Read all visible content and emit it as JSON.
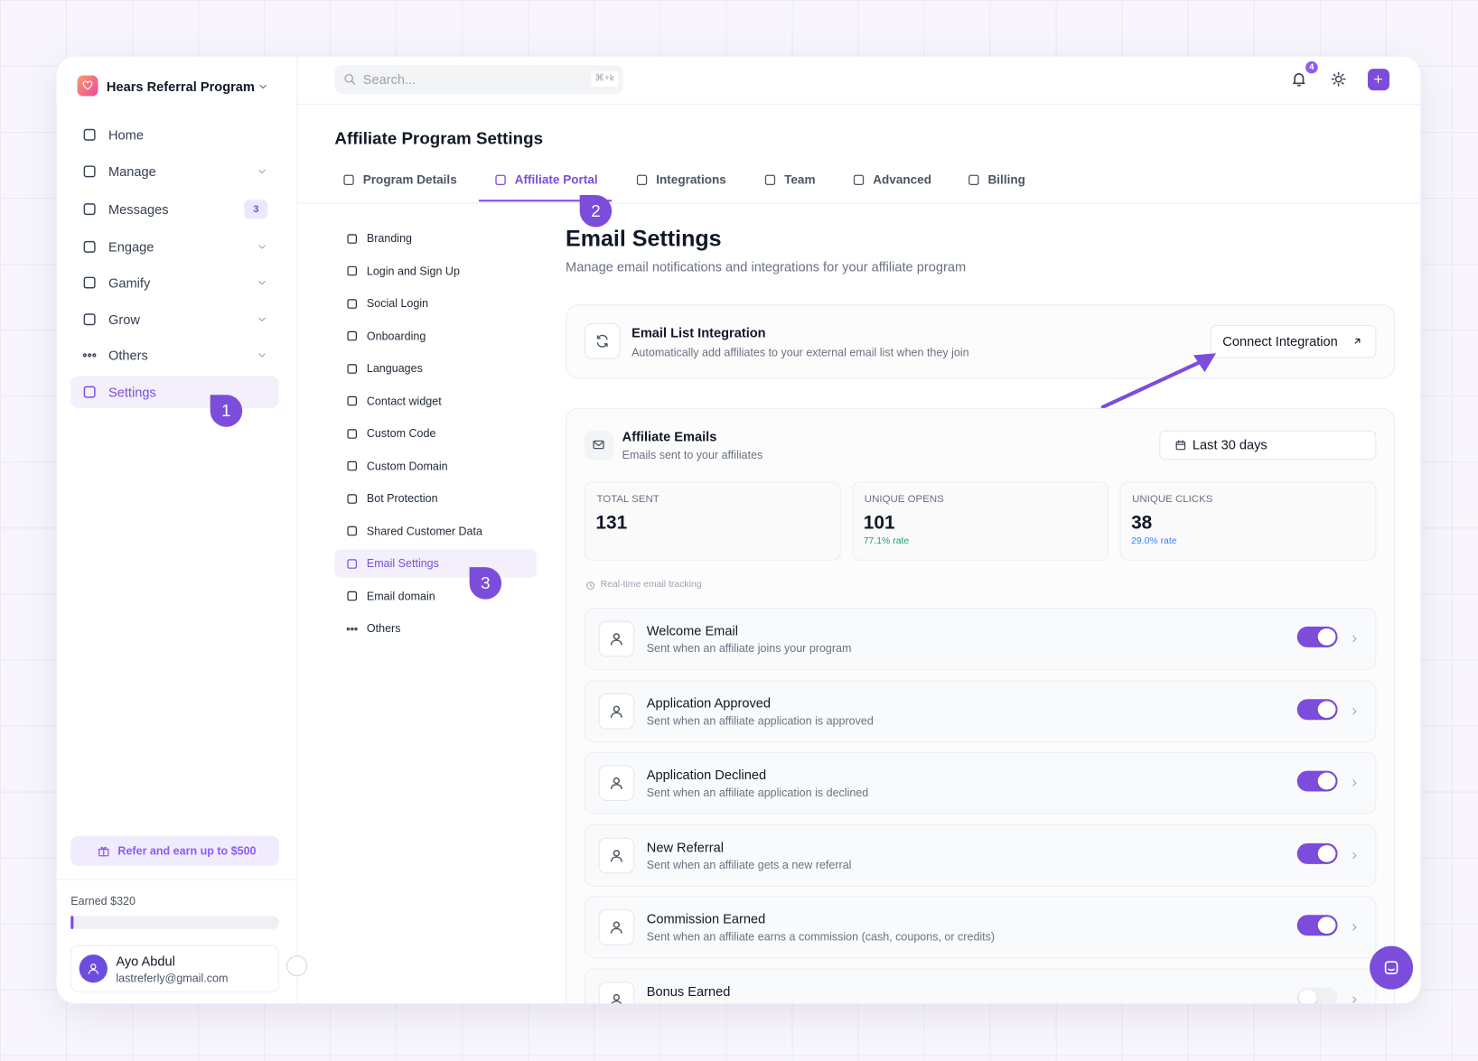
{
  "sidebar": {
    "program": "Hears Referral Program",
    "nav": [
      {
        "label": "Home"
      },
      {
        "label": "Manage",
        "expandable": true
      },
      {
        "label": "Messages",
        "badge": "3"
      },
      {
        "label": "Engage",
        "expandable": true
      },
      {
        "label": "Gamify",
        "expandable": true
      },
      {
        "label": "Grow",
        "expandable": true
      },
      {
        "label": "Others",
        "expandable": true
      },
      {
        "label": "Settings",
        "active": true
      }
    ],
    "refer": "Refer and earn up to $500",
    "earned": "Earned $320",
    "user": {
      "name": "Ayo Abdul",
      "email": "lastreferly@gmail.com"
    }
  },
  "topbar": {
    "search_placeholder": "Search...",
    "shortcut": "⌘+k",
    "notification_count": "4"
  },
  "callouts": [
    "1",
    "2",
    "3"
  ],
  "settings": {
    "title": "Affiliate Program Settings",
    "tabs": [
      {
        "label": "Program Details"
      },
      {
        "label": "Affiliate Portal",
        "active": true
      },
      {
        "label": "Integrations"
      },
      {
        "label": "Team"
      },
      {
        "label": "Advanced"
      },
      {
        "label": "Billing"
      }
    ],
    "menu": [
      {
        "label": "Branding"
      },
      {
        "label": "Login and Sign Up"
      },
      {
        "label": "Social Login"
      },
      {
        "label": "Onboarding"
      },
      {
        "label": "Languages"
      },
      {
        "label": "Contact widget"
      },
      {
        "label": "Custom Code"
      },
      {
        "label": "Custom Domain"
      },
      {
        "label": "Bot Protection"
      },
      {
        "label": "Shared Customer Data"
      },
      {
        "label": "Email Settings",
        "active": true
      },
      {
        "label": "Email domain"
      },
      {
        "label": "Others"
      }
    ]
  },
  "email_settings": {
    "title": "Email Settings",
    "subtitle": "Manage email notifications and integrations for your affiliate program",
    "integration": {
      "title": "Email List Integration",
      "description": "Automatically add affiliates to your external email list when they join",
      "button": "Connect Integration"
    },
    "affiliate_emails": {
      "title": "Affiliate Emails",
      "subtitle": "Emails sent to your affiliates",
      "range": "Last 30 days",
      "stats": [
        {
          "label": "TOTAL SENT",
          "value": "131"
        },
        {
          "label": "UNIQUE OPENS",
          "value": "101",
          "rate": "77.1% rate"
        },
        {
          "label": "UNIQUE CLICKS",
          "value": "38",
          "rate": "29.0% rate"
        }
      ],
      "tracking_note": "Real-time email tracking",
      "emails": [
        {
          "title": "Welcome Email",
          "description": "Sent when an affiliate joins your program",
          "enabled": true
        },
        {
          "title": "Application Approved",
          "description": "Sent when an affiliate application is approved",
          "enabled": true
        },
        {
          "title": "Application Declined",
          "description": "Sent when an affiliate application is declined",
          "enabled": true
        },
        {
          "title": "New Referral",
          "description": "Sent when an affiliate gets a new referral",
          "enabled": true
        },
        {
          "title": "Commission Earned",
          "description": "Sent when an affiliate earns a commission (cash, coupons, or credits)",
          "enabled": true
        },
        {
          "title": "Bonus Earned",
          "enabled": false
        }
      ]
    }
  }
}
